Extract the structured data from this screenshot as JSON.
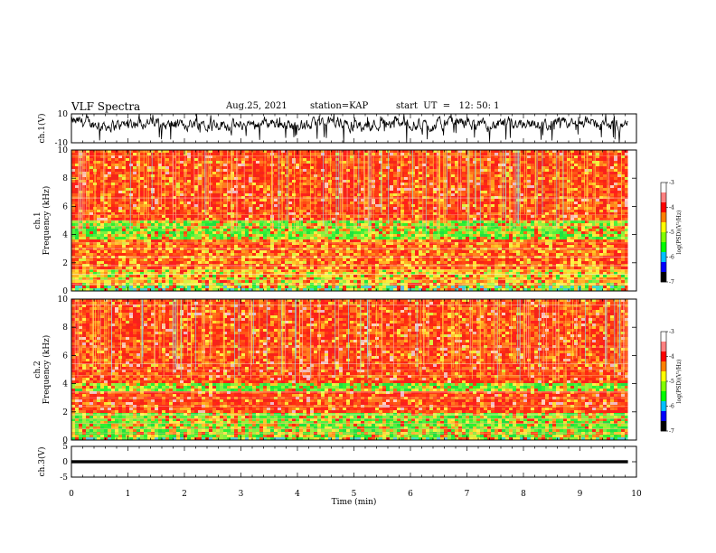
{
  "header": {
    "title": "VLF Spectra",
    "date": "Aug.25, 2021",
    "station": "station=KAP",
    "start": "start  UT  =   12: 50: 1"
  },
  "chart_data": [
    {
      "type": "line",
      "name": "ch1-waveform",
      "ylabel": "ch.1(V)",
      "ylim": [
        -10,
        10
      ],
      "yticks": [
        "10",
        "-10"
      ],
      "xlim": [
        0,
        10
      ],
      "trace_range_min": [
        0,
        9.85
      ],
      "trace_center_v": 3.0,
      "trace_amplitude_v": 4.0
    },
    {
      "type": "heatmap",
      "name": "ch1-spectrogram",
      "ylabel": "ch.1\nFrequency  (kHz)",
      "ylim_khz": [
        0,
        10
      ],
      "yticks": [
        "0",
        "2",
        "4",
        "6",
        "8",
        "10"
      ],
      "xlim_min": [
        0,
        10
      ],
      "data_end_min": 9.85,
      "colorbar": {
        "label": "log(PSD)(V²/Hz)",
        "ticks": [
          "-3",
          "-4",
          "-5",
          "-6",
          "-7"
        ],
        "range": [
          -7,
          -3
        ]
      },
      "bands": [
        {
          "from_khz": 0.0,
          "to_khz": 0.3,
          "level": "mixed"
        },
        {
          "from_khz": 0.3,
          "to_khz": 1.6,
          "level": "yellow-orange"
        },
        {
          "from_khz": 1.6,
          "to_khz": 3.6,
          "level": "red-orange"
        },
        {
          "from_khz": 3.6,
          "to_khz": 5.0,
          "level": "green"
        },
        {
          "from_khz": 5.0,
          "to_khz": 10.0,
          "level": "red"
        }
      ]
    },
    {
      "type": "heatmap",
      "name": "ch2-spectrogram",
      "ylabel": "ch.2\nFrequency  (kHz)",
      "ylim_khz": [
        0,
        10
      ],
      "yticks": [
        "0",
        "2",
        "4",
        "6",
        "8",
        "10"
      ],
      "xlim_min": [
        0,
        10
      ],
      "data_end_min": 9.85,
      "colorbar": {
        "label": "log(PSD)(V²/Hz)",
        "ticks": [
          "-3",
          "-4",
          "-5",
          "-6",
          "-7"
        ],
        "range": [
          -7,
          -3
        ]
      },
      "bands": [
        {
          "from_khz": 0.0,
          "to_khz": 0.2,
          "level": "mixed"
        },
        {
          "from_khz": 0.2,
          "to_khz": 2.0,
          "level": "green"
        },
        {
          "from_khz": 2.0,
          "to_khz": 3.5,
          "level": "red"
        },
        {
          "from_khz": 3.5,
          "to_khz": 4.1,
          "level": "green"
        },
        {
          "from_khz": 4.1,
          "to_khz": 10.0,
          "level": "red"
        }
      ]
    },
    {
      "type": "line",
      "name": "ch3-waveform",
      "ylabel": "ch.3(V)",
      "ylim": [
        -5,
        5
      ],
      "yticks": [
        "5",
        "0",
        "-5"
      ],
      "trace_center_v": 0.0,
      "trace_thickness_v": 1.0
    }
  ],
  "xaxis": {
    "label": "Time  (min)",
    "ticks": [
      "0",
      "1",
      "2",
      "3",
      "4",
      "5",
      "6",
      "7",
      "8",
      "9",
      "10"
    ]
  }
}
